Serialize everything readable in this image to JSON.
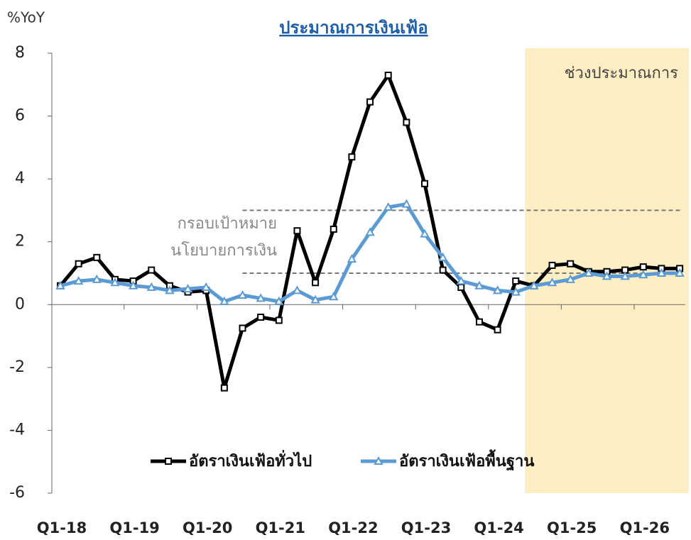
{
  "chart_data": {
    "type": "line",
    "title": "ประมาณการเงินเฟ้อ",
    "y_label": "%YoY",
    "shade_label": "ช่วงประมาณการ",
    "band_label": [
      "กรอบเป้าหมาย",
      "นโยบายการเงิน"
    ],
    "target_range": [
      1,
      3
    ],
    "categories": [
      "Q1-18",
      null,
      null,
      null,
      "Q1-19",
      null,
      null,
      null,
      "Q1-20",
      null,
      null,
      null,
      "Q1-21",
      null,
      null,
      null,
      "Q1-22",
      null,
      null,
      null,
      "Q1-23",
      null,
      null,
      null,
      "Q1-24",
      null,
      null,
      null,
      "Q1-25",
      null,
      null,
      null,
      "Q1-26",
      null,
      null
    ],
    "series": [
      {
        "name": "อัตราเงินเฟ้อทั่วไป",
        "color": "#000000",
        "marker": "square",
        "values": [
          0.6,
          1.3,
          1.5,
          0.8,
          0.75,
          1.1,
          0.6,
          0.4,
          0.45,
          -2.65,
          -0.75,
          -0.4,
          -0.5,
          2.35,
          0.7,
          2.4,
          4.7,
          6.45,
          7.3,
          5.8,
          3.85,
          1.1,
          0.55,
          -0.55,
          -0.8,
          0.75,
          0.6,
          1.25,
          1.3,
          1.05,
          1.05,
          1.1,
          1.2,
          1.15,
          1.15
        ]
      },
      {
        "name": "อัตราเงินเฟ้อพื้นฐาน",
        "color": "#5b9bd5",
        "marker": "triangle",
        "values": [
          0.6,
          0.75,
          0.8,
          0.7,
          0.6,
          0.55,
          0.45,
          0.5,
          0.55,
          0.1,
          0.3,
          0.2,
          0.1,
          0.45,
          0.15,
          0.25,
          1.45,
          2.3,
          3.1,
          3.2,
          2.25,
          1.5,
          0.75,
          0.6,
          0.45,
          0.4,
          0.6,
          0.7,
          0.8,
          1.0,
          0.9,
          0.9,
          0.95,
          1.0,
          1.0
        ]
      }
    ],
    "ylim": [
      -6,
      8
    ],
    "yticks": [
      -6,
      -4,
      -2,
      0,
      2,
      4,
      6,
      8
    ]
  }
}
